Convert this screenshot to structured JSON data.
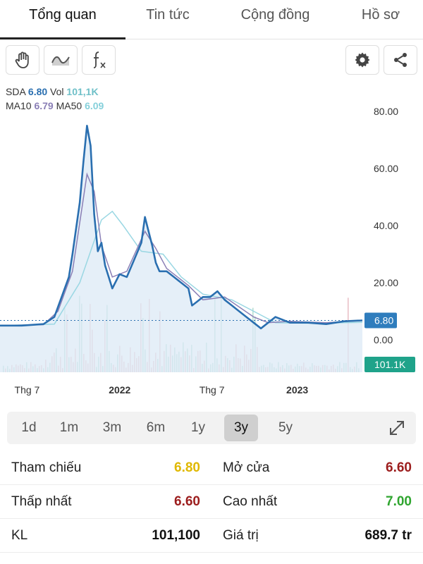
{
  "tabs": [
    {
      "label": "Tổng quan",
      "active": true
    },
    {
      "label": "Tin tức",
      "active": false
    },
    {
      "label": "Cộng đồng",
      "active": false
    },
    {
      "label": "Hồ sơ",
      "active": false
    }
  ],
  "toolbar": {
    "left_icons": [
      "hand-icon",
      "wave-line-icon",
      "function-fx-icon"
    ],
    "right_icons": [
      "gear-icon",
      "share-icon"
    ]
  },
  "legend": {
    "symbol": "SDA",
    "price": "6.80",
    "vol_label": "Vol",
    "vol": "101,1K",
    "ma10_label": "MA10",
    "ma10": "6.79",
    "ma50_label": "MA50",
    "ma50": "6.09"
  },
  "colors": {
    "price_line": "#2a6fb0",
    "ma10_line": "#8a7fb6",
    "ma50_line": "#9ad7e3",
    "area_fill": "#dceaf6",
    "vol_up": "#b7dfd3",
    "vol_down": "#eac1c8",
    "price_badge": "#2f7dbd",
    "vol_badge": "#1fa38a",
    "price_ref": "#e0b800",
    "price_down": "#9c1d1d",
    "price_up": "#2fa52f"
  },
  "chart_data": {
    "type": "line",
    "y_ticks": [
      "80.00",
      "60.00",
      "40.00",
      "20.00",
      "0.00"
    ],
    "ylim": [
      0,
      80
    ],
    "x_ticks": [
      {
        "label": "Thg 7",
        "bold": false,
        "t": 0.04
      },
      {
        "label": "2022",
        "bold": true,
        "t": 0.3
      },
      {
        "label": "Thg 7",
        "bold": false,
        "t": 0.55
      },
      {
        "label": "2023",
        "bold": true,
        "t": 0.79
      }
    ],
    "price_badge": "6.80",
    "volume_badge": "101.1K",
    "series": [
      {
        "name": "SDA",
        "x": [
          0,
          0.06,
          0.12,
          0.15,
          0.17,
          0.19,
          0.2,
          0.22,
          0.23,
          0.24,
          0.25,
          0.26,
          0.27,
          0.28,
          0.29,
          0.3,
          0.31,
          0.33,
          0.35,
          0.37,
          0.39,
          0.4,
          0.41,
          0.42,
          0.43,
          0.44,
          0.46,
          0.48,
          0.5,
          0.52,
          0.53,
          0.54,
          0.56,
          0.58,
          0.6,
          0.62,
          0.64,
          0.66,
          0.68,
          0.7,
          0.72,
          0.74,
          0.76,
          0.78,
          0.8,
          0.85,
          0.9,
          0.95,
          1
        ],
        "y": [
          5,
          5,
          5.5,
          8,
          15,
          22,
          30,
          48,
          62,
          75,
          68,
          44,
          31,
          34,
          26,
          22,
          18,
          23,
          22,
          28,
          34,
          43,
          38,
          33,
          27,
          24,
          24,
          22,
          20,
          18,
          12,
          13,
          15,
          15,
          17,
          14,
          12,
          10,
          8,
          6,
          4,
          6,
          8,
          7,
          6,
          6,
          5.5,
          6.5,
          6.8
        ]
      },
      {
        "name": "MA10",
        "x": [
          0,
          0.12,
          0.16,
          0.2,
          0.24,
          0.26,
          0.28,
          0.31,
          0.35,
          0.4,
          0.43,
          0.46,
          0.52,
          0.56,
          0.62,
          0.7,
          0.74,
          0.8,
          0.9,
          1
        ],
        "y": [
          5,
          5.3,
          10,
          24,
          58,
          52,
          33,
          22,
          24,
          38,
          32,
          25,
          19,
          14,
          15,
          8,
          6,
          6.5,
          6,
          6.79
        ]
      },
      {
        "name": "MA50",
        "x": [
          0,
          0.15,
          0.22,
          0.28,
          0.31,
          0.34,
          0.39,
          0.45,
          0.5,
          0.56,
          0.64,
          0.7,
          0.76,
          0.85,
          1
        ],
        "y": [
          5,
          5.5,
          20,
          42,
          45,
          40,
          31,
          30,
          22,
          16,
          14,
          10,
          6,
          5.8,
          6.09
        ]
      }
    ],
    "volume_peaks": [
      0.18,
      0.22,
      0.25,
      0.29,
      0.39,
      0.41,
      0.44,
      0.59,
      0.61,
      0.7,
      0.96
    ],
    "ref_line": 6.8
  },
  "range": {
    "options": [
      "1d",
      "1m",
      "3m",
      "6m",
      "1y",
      "3y",
      "5y"
    ],
    "active": "3y",
    "expand_icon": "expand-arrows-icon"
  },
  "stats": [
    {
      "left_label": "Tham chiếu",
      "left_value": "6.80",
      "left_color": "#e0b800",
      "right_label": "Mở cửa",
      "right_value": "6.60",
      "right_color": "#9c1d1d"
    },
    {
      "left_label": "Thấp nhất",
      "left_value": "6.60",
      "left_color": "#9c1d1d",
      "right_label": "Cao nhất",
      "right_value": "7.00",
      "right_color": "#2fa52f"
    },
    {
      "left_label": "KL",
      "left_value": "101,100",
      "left_color": "#111111",
      "right_label": "Giá trị",
      "right_value": "689.7 tr",
      "right_color": "#111111"
    }
  ]
}
